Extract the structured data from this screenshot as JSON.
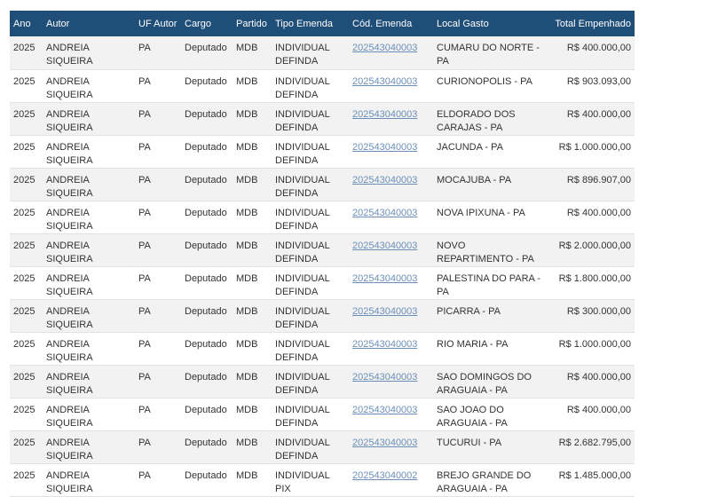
{
  "table": {
    "header": [
      "Ano",
      "Autor",
      "UF Autor",
      "Cargo",
      "Partido",
      "Tipo Emenda",
      "Cód. Emenda",
      "Local Gasto",
      "Total Empenhado"
    ],
    "rows": [
      [
        "2025",
        "ANDREIA SIQUEIRA",
        "PA",
        "Deputado",
        "MDB",
        "INDIVIDUAL DEFINDA",
        "202543040003",
        "CUMARU DO NORTE - PA",
        "R$ 400.000,00"
      ],
      [
        "2025",
        "ANDREIA SIQUEIRA",
        "PA",
        "Deputado",
        "MDB",
        "INDIVIDUAL DEFINDA",
        "202543040003",
        "CURIONOPOLIS - PA",
        "R$ 903.093,00"
      ],
      [
        "2025",
        "ANDREIA SIQUEIRA",
        "PA",
        "Deputado",
        "MDB",
        "INDIVIDUAL DEFINDA",
        "202543040003",
        "ELDORADO DOS CARAJAS - PA",
        "R$ 400.000,00"
      ],
      [
        "2025",
        "ANDREIA SIQUEIRA",
        "PA",
        "Deputado",
        "MDB",
        "INDIVIDUAL DEFINDA",
        "202543040003",
        "JACUNDA - PA",
        "R$ 1.000.000,00"
      ],
      [
        "2025",
        "ANDREIA SIQUEIRA",
        "PA",
        "Deputado",
        "MDB",
        "INDIVIDUAL DEFINDA",
        "202543040003",
        "MOCAJUBA - PA",
        "R$ 896.907,00"
      ],
      [
        "2025",
        "ANDREIA SIQUEIRA",
        "PA",
        "Deputado",
        "MDB",
        "INDIVIDUAL DEFINDA",
        "202543040003",
        "NOVA IPIXUNA - PA",
        "R$ 400.000,00"
      ],
      [
        "2025",
        "ANDREIA SIQUEIRA",
        "PA",
        "Deputado",
        "MDB",
        "INDIVIDUAL DEFINDA",
        "202543040003",
        "NOVO REPARTIMENTO - PA",
        "R$ 2.000.000,00"
      ],
      [
        "2025",
        "ANDREIA SIQUEIRA",
        "PA",
        "Deputado",
        "MDB",
        "INDIVIDUAL DEFINDA",
        "202543040003",
        "PALESTINA DO PARA - PA",
        "R$ 1.800.000,00"
      ],
      [
        "2025",
        "ANDREIA SIQUEIRA",
        "PA",
        "Deputado",
        "MDB",
        "INDIVIDUAL DEFINDA",
        "202543040003",
        "PICARRA - PA",
        "R$ 300.000,00"
      ],
      [
        "2025",
        "ANDREIA SIQUEIRA",
        "PA",
        "Deputado",
        "MDB",
        "INDIVIDUAL DEFINDA",
        "202543040003",
        "RIO MARIA - PA",
        "R$ 1.000.000,00"
      ],
      [
        "2025",
        "ANDREIA SIQUEIRA",
        "PA",
        "Deputado",
        "MDB",
        "INDIVIDUAL DEFINDA",
        "202543040003",
        "SAO DOMINGOS DO ARAGUAIA - PA",
        "R$ 400.000,00"
      ],
      [
        "2025",
        "ANDREIA SIQUEIRA",
        "PA",
        "Deputado",
        "MDB",
        "INDIVIDUAL DEFINDA",
        "202543040003",
        "SAO JOAO DO ARAGUAIA - PA",
        "R$ 400.000,00"
      ],
      [
        "2025",
        "ANDREIA SIQUEIRA",
        "PA",
        "Deputado",
        "MDB",
        "INDIVIDUAL DEFINDA",
        "202543040003",
        "TUCURUI - PA",
        "R$ 2.682.795,00"
      ],
      [
        "2025",
        "ANDREIA SIQUEIRA",
        "PA",
        "Deputado",
        "MDB",
        "INDIVIDUAL PIX",
        "202543040002",
        "BREJO GRANDE DO ARAGUAIA - PA",
        "R$ 1.485.000,00"
      ]
    ]
  }
}
